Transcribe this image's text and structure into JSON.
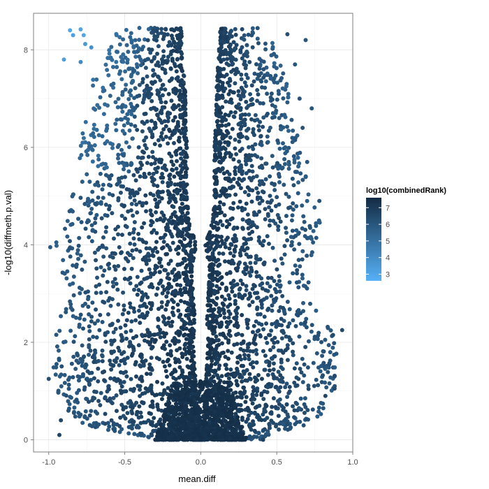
{
  "chart_data": {
    "type": "scatter",
    "title": "",
    "xlabel": "mean.diff",
    "ylabel": "-log10(diffmeth.p.val)",
    "xlim": [
      -1.1,
      1.0
    ],
    "ylim": [
      -0.25,
      8.75
    ],
    "x_ticks": [
      -1.0,
      -0.5,
      0.0,
      0.5,
      1.0
    ],
    "x_tick_labels": [
      "-1.0",
      "-0.5",
      "0.0",
      "0.5",
      "1.0"
    ],
    "y_ticks": [
      0,
      2,
      4,
      6,
      8
    ],
    "y_tick_labels": [
      "0",
      "2",
      "4",
      "6",
      "8"
    ],
    "grid": true,
    "legend": {
      "title": "log10(combinedRank)",
      "placement": "right",
      "ticks": [
        3,
        4,
        5,
        6,
        7
      ],
      "tick_labels": [
        "3",
        "4",
        "5",
        "6",
        "7"
      ],
      "range": [
        2.6,
        7.6
      ],
      "color_low": "#56B1F7",
      "color_high": "#132B43"
    },
    "envelope": [
      {
        "y": 0.0,
        "left": -0.25,
        "right": 0.38,
        "gap": 0.0
      },
      {
        "y": 0.25,
        "left": -0.7,
        "right": 0.65,
        "gap": 0.0
      },
      {
        "y": 0.5,
        "left": -0.9,
        "right": 0.8,
        "gap": 0.02
      },
      {
        "y": 1.0,
        "left": -0.95,
        "right": 0.88,
        "gap": 0.03
      },
      {
        "y": 1.5,
        "left": -0.97,
        "right": 0.9,
        "gap": 0.04
      },
      {
        "y": 2.0,
        "left": -0.96,
        "right": 0.92,
        "gap": 0.05
      },
      {
        "y": 2.5,
        "left": -0.93,
        "right": 0.8,
        "gap": 0.04
      },
      {
        "y": 3.0,
        "left": -0.9,
        "right": 0.7,
        "gap": 0.05
      },
      {
        "y": 3.5,
        "left": -0.92,
        "right": 0.72,
        "gap": 0.06
      },
      {
        "y": 4.0,
        "left": -0.95,
        "right": 0.75,
        "gap": 0.03
      },
      {
        "y": 4.5,
        "left": -0.88,
        "right": 0.8,
        "gap": 0.08
      },
      {
        "y": 5.0,
        "left": -0.85,
        "right": 0.75,
        "gap": 0.09
      },
      {
        "y": 5.5,
        "left": -0.82,
        "right": 0.68,
        "gap": 0.09
      },
      {
        "y": 6.0,
        "left": -0.8,
        "right": 0.65,
        "gap": 0.09
      },
      {
        "y": 6.5,
        "left": -0.78,
        "right": 0.62,
        "gap": 0.1
      },
      {
        "y": 7.0,
        "left": -0.75,
        "right": 0.6,
        "gap": 0.1
      },
      {
        "y": 7.5,
        "left": -0.7,
        "right": 0.55,
        "gap": 0.11
      },
      {
        "y": 8.0,
        "left": -0.62,
        "right": 0.5,
        "gap": 0.12
      },
      {
        "y": 8.45,
        "left": -0.55,
        "right": 0.45,
        "gap": 0.13
      }
    ],
    "outliers": [
      {
        "x": -0.86,
        "y": 8.4,
        "c": 3.0
      },
      {
        "x": -0.84,
        "y": 8.3,
        "c": 3.2
      },
      {
        "x": -0.79,
        "y": 8.42,
        "c": 3.1
      },
      {
        "x": -0.77,
        "y": 8.3,
        "c": 3.0
      },
      {
        "x": -0.9,
        "y": 7.8,
        "c": 3.3
      },
      {
        "x": -0.76,
        "y": 8.12,
        "c": 3.5
      },
      {
        "x": -0.72,
        "y": 8.05,
        "c": 3.8
      },
      {
        "x": -0.79,
        "y": 7.75,
        "c": 4.0
      },
      {
        "x": 0.69,
        "y": 8.2,
        "c": 6.0
      },
      {
        "x": 0.57,
        "y": 8.32,
        "c": 6.2
      },
      {
        "x": 0.62,
        "y": 7.7,
        "c": 6.0
      },
      {
        "x": 0.65,
        "y": 7.0,
        "c": 6.1
      },
      {
        "x": 0.73,
        "y": 6.8,
        "c": 6.0
      },
      {
        "x": 0.67,
        "y": 6.4,
        "c": 6.1
      },
      {
        "x": 0.7,
        "y": 5.7,
        "c": 6.0
      },
      {
        "x": -0.99,
        "y": 3.95,
        "c": 5.8
      },
      {
        "x": -0.95,
        "y": 4.05,
        "c": 5.7
      },
      {
        "x": -1.0,
        "y": 1.25,
        "c": 6.2
      },
      {
        "x": -0.92,
        "y": 0.4,
        "c": 6.5
      },
      {
        "x": 0.93,
        "y": 2.25,
        "c": 6.5
      },
      {
        "x": 0.87,
        "y": 2.15,
        "c": 6.4
      },
      {
        "x": 0.88,
        "y": 1.3,
        "c": 6.5
      },
      {
        "x": 0.88,
        "y": 1.05,
        "c": 6.5
      },
      {
        "x": 0.82,
        "y": 0.9,
        "c": 6.6
      },
      {
        "x": 0.41,
        "y": 0.0,
        "c": 6.8
      },
      {
        "x": 0.43,
        "y": 1.6,
        "c": 6.2
      },
      {
        "x": 0.6,
        "y": 4.5,
        "c": 6.0
      },
      {
        "x": 0.78,
        "y": 4.9,
        "c": 6.1
      },
      {
        "x": -0.93,
        "y": 0.1,
        "c": 6.6
      }
    ]
  }
}
